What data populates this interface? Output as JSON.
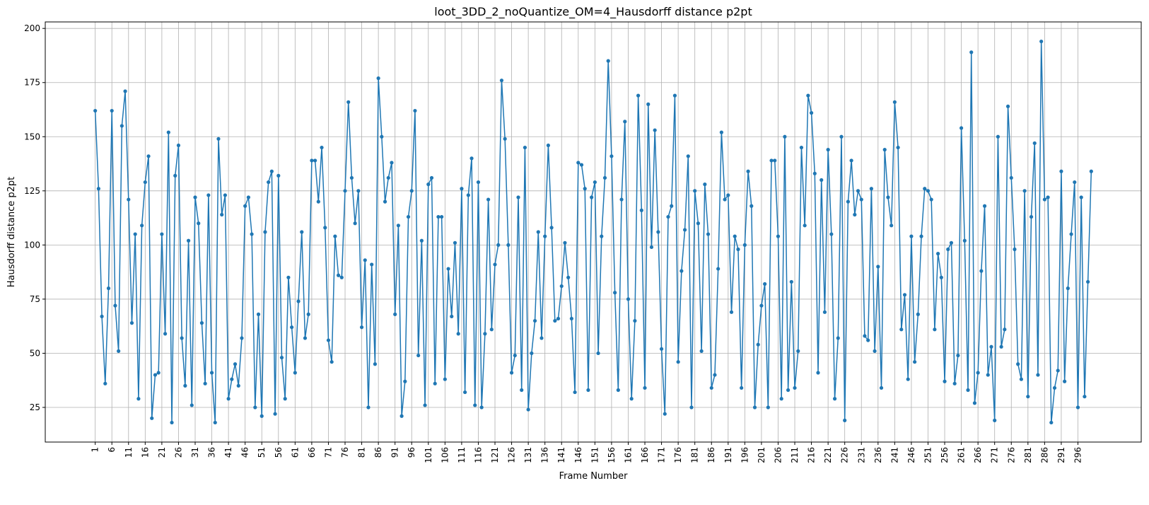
{
  "chart_data": {
    "type": "line",
    "title": "loot_3DD_2_noQuantize_OM=4_Hausdorff distance p2pt",
    "xlabel": "Frame Number",
    "ylabel": "Hausdorff distance p2pt",
    "x_start": 1,
    "x_end": 300,
    "xlim": [
      -14,
      315
    ],
    "ylim": [
      9,
      203
    ],
    "x_ticks": [
      1,
      6,
      11,
      16,
      21,
      26,
      31,
      36,
      41,
      46,
      51,
      56,
      61,
      66,
      71,
      76,
      81,
      86,
      91,
      96,
      101,
      106,
      111,
      116,
      121,
      126,
      131,
      136,
      141,
      146,
      151,
      156,
      161,
      166,
      171,
      176,
      181,
      186,
      191,
      196,
      201,
      206,
      211,
      216,
      221,
      226,
      231,
      236,
      241,
      246,
      251,
      256,
      261,
      266,
      271,
      276,
      281,
      286,
      291,
      296
    ],
    "y_ticks": [
      25,
      50,
      75,
      100,
      125,
      150,
      175,
      200
    ],
    "grid": true,
    "line_color": "#1f77b4",
    "marker": "circle",
    "series": [
      {
        "values": [
          162,
          126,
          67,
          36,
          80,
          162,
          72,
          51,
          155,
          171,
          121,
          64,
          105,
          29,
          109,
          129,
          141,
          20,
          40,
          41,
          105,
          59,
          152,
          18,
          132,
          146,
          57,
          35,
          102,
          26,
          122,
          110,
          64,
          36,
          123,
          41,
          18,
          149,
          114,
          123,
          29,
          38,
          45,
          35,
          57,
          118,
          122,
          105,
          25,
          68,
          21,
          106,
          129,
          134,
          22,
          132,
          48,
          29,
          85,
          62,
          41,
          74,
          106,
          57,
          68,
          139,
          139,
          120,
          145,
          108,
          56,
          46,
          104,
          86,
          85,
          125,
          166,
          131,
          110,
          125,
          62,
          93,
          25,
          91,
          45,
          177,
          150,
          120,
          131,
          138,
          68,
          109,
          21,
          37,
          113,
          125,
          162,
          49,
          102,
          26,
          128,
          131,
          36,
          113,
          113,
          38,
          89,
          67,
          101,
          59,
          126,
          32,
          123,
          140,
          26,
          129,
          25,
          59,
          121,
          61,
          91,
          100,
          176,
          149,
          100,
          41,
          49,
          122,
          33,
          145,
          24,
          50,
          65,
          106,
          57,
          104,
          146,
          108,
          65,
          66,
          81,
          101,
          85,
          66,
          32,
          138,
          137,
          126,
          33,
          122,
          129,
          50,
          104,
          131,
          185,
          141,
          78,
          33,
          121,
          157,
          75,
          29,
          65,
          169,
          116,
          34,
          165,
          99,
          153,
          106,
          52,
          22,
          113,
          118,
          169,
          46,
          88,
          107,
          141,
          25,
          125,
          110,
          51,
          128,
          105,
          34,
          40,
          89,
          152,
          121,
          123,
          69,
          104,
          98,
          34,
          100,
          134,
          118,
          25,
          54,
          72,
          82,
          25,
          139,
          139,
          104,
          29,
          150,
          33,
          83,
          34,
          51,
          145,
          109,
          169,
          161,
          133,
          41,
          130,
          69,
          144,
          105,
          29,
          57,
          150,
          19,
          120,
          139,
          114,
          125,
          121,
          58,
          56,
          126,
          51,
          90,
          34,
          144,
          122,
          109,
          166,
          145,
          61,
          77,
          38,
          104,
          46,
          68,
          104,
          126,
          125,
          121,
          61,
          96,
          85,
          37,
          98,
          101,
          36,
          49,
          154,
          102,
          33,
          189,
          27,
          41,
          88,
          118,
          40,
          53,
          19,
          150,
          53,
          61,
          164,
          131,
          98,
          45,
          38,
          125,
          30,
          113,
          147,
          40,
          194,
          121,
          122,
          18,
          34,
          42,
          134,
          37,
          80,
          105,
          129,
          25,
          122,
          30,
          83,
          134
        ]
      }
    ]
  }
}
